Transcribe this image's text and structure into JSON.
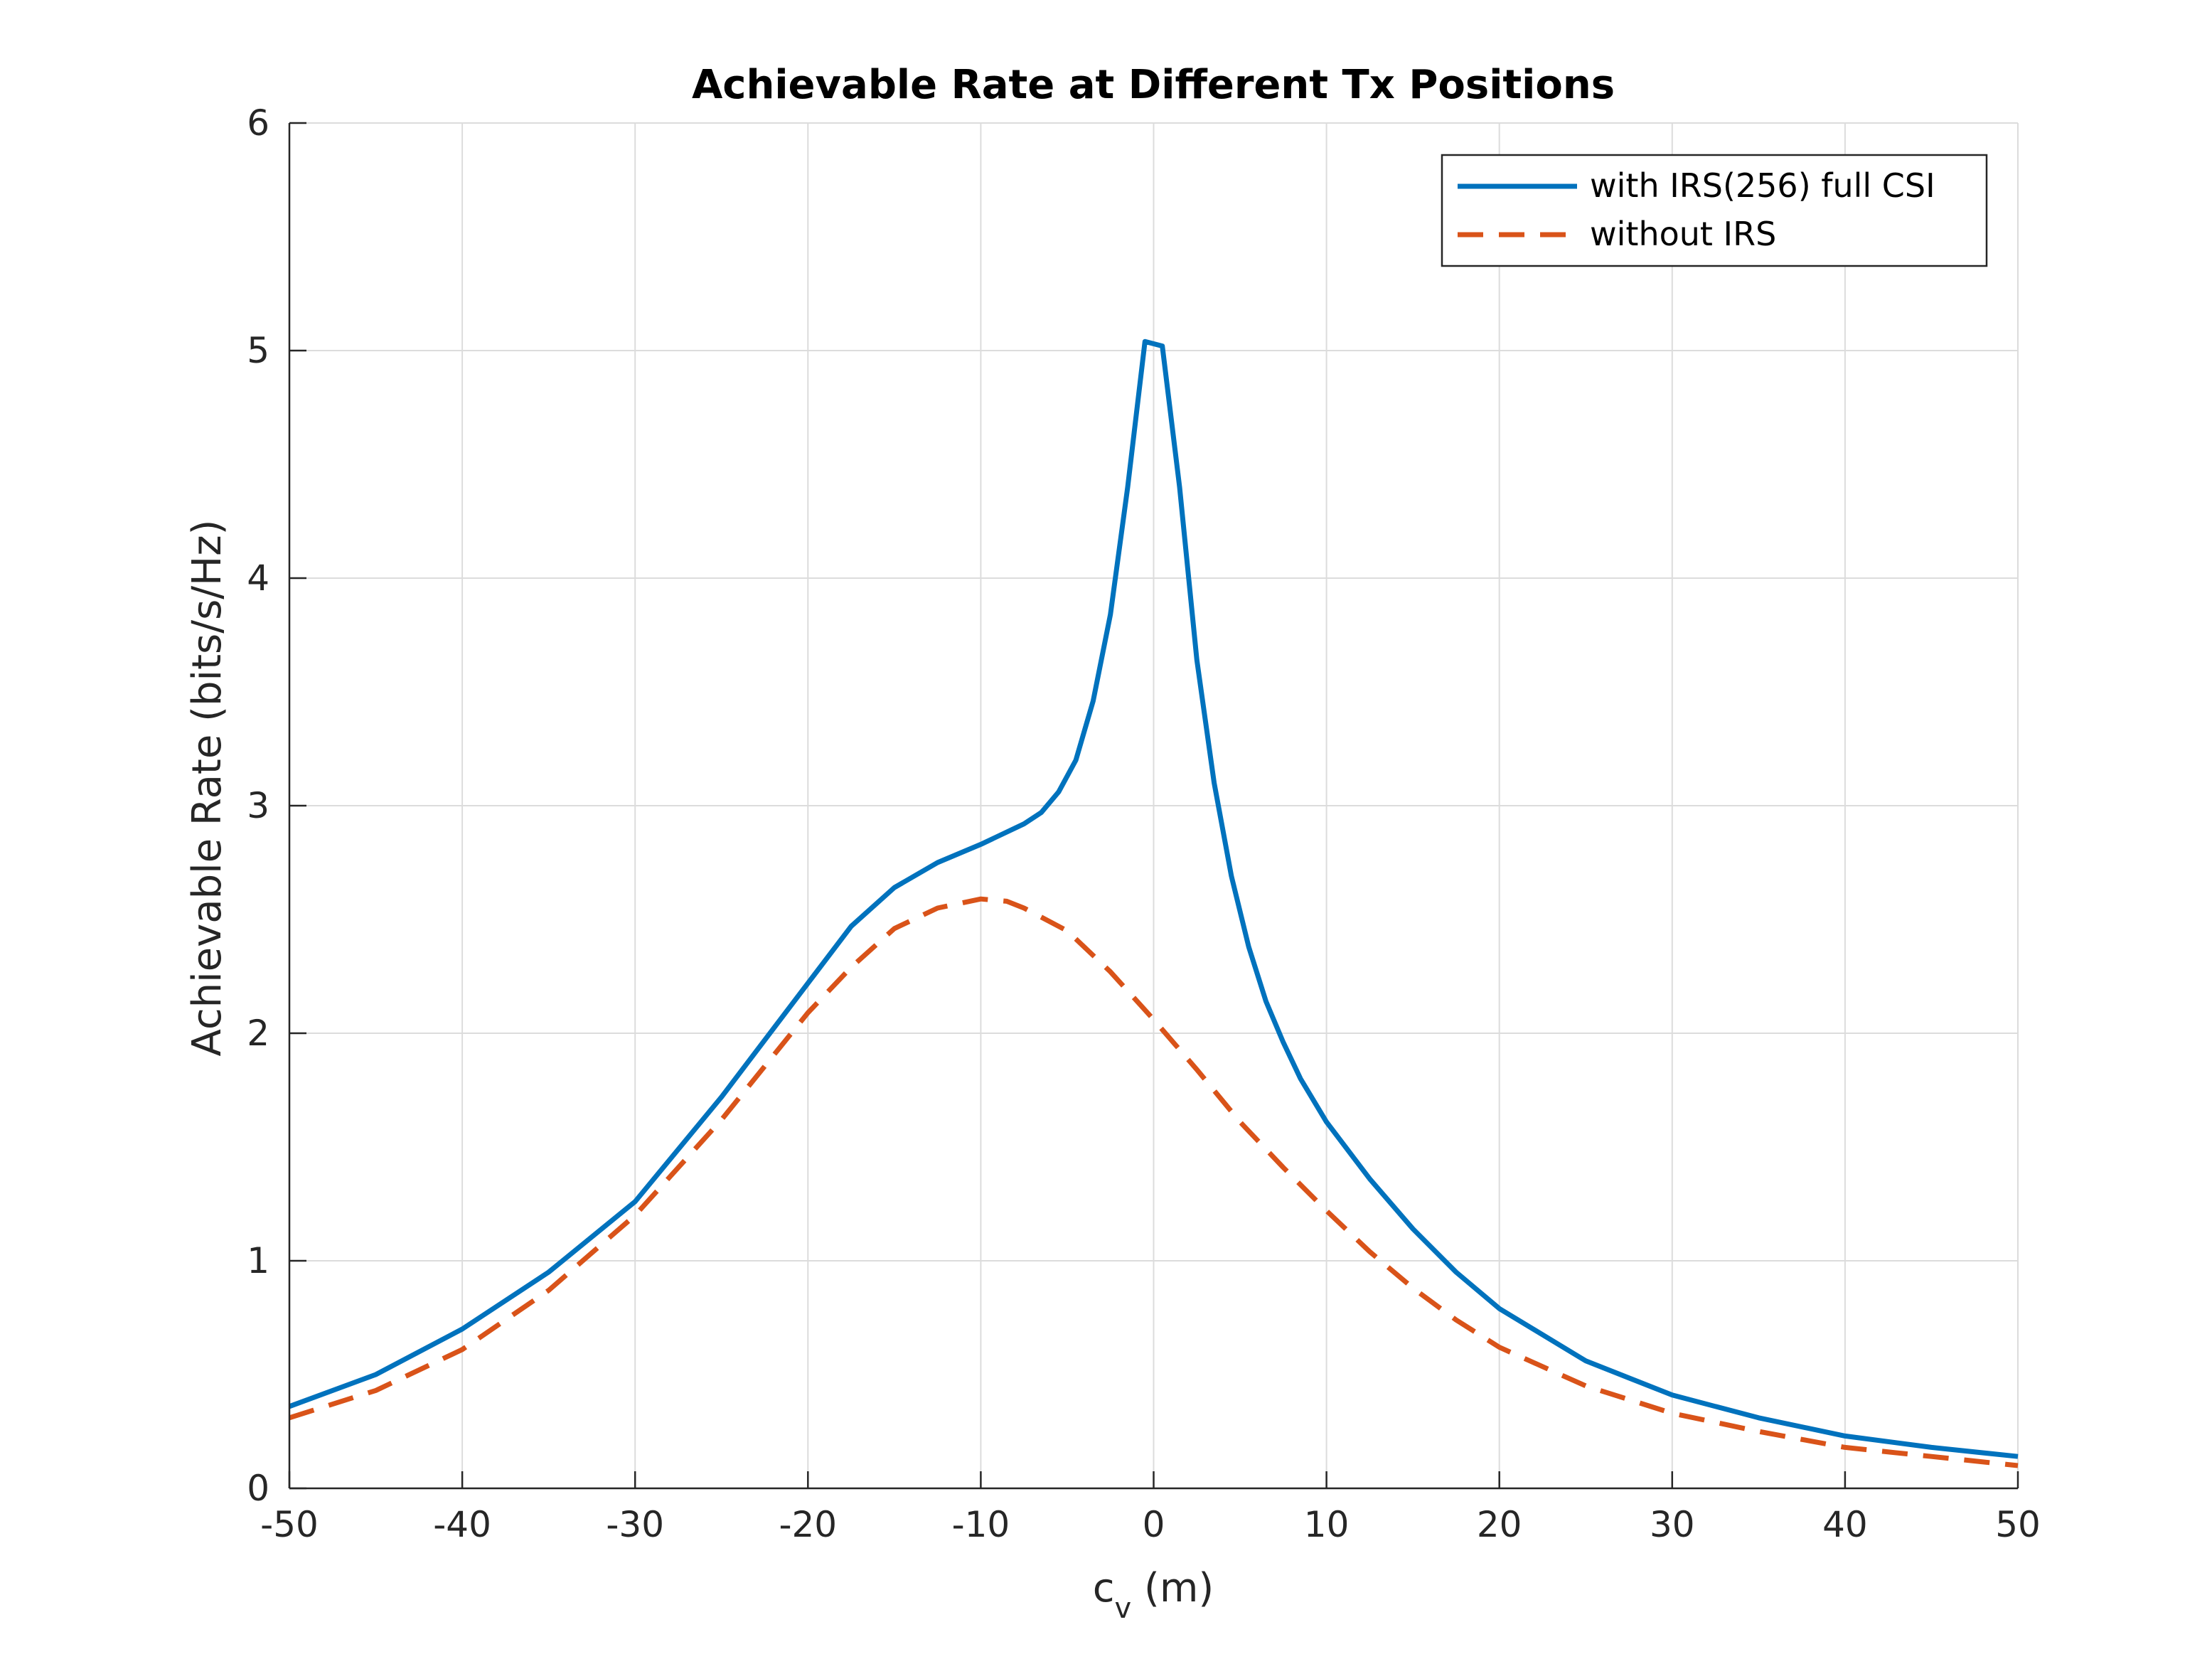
{
  "chart_data": {
    "type": "line",
    "title": "Achievable Rate at Different Tx Positions",
    "xlabel": "c",
    "xlabel_sub": "v",
    "xlabel_unit": " (m)",
    "ylabel": "Achievable Rate (bits/s/Hz)",
    "xlim": [
      -50,
      50
    ],
    "ylim": [
      0,
      6
    ],
    "xticks": [
      -50,
      -40,
      -30,
      -20,
      -10,
      0,
      10,
      20,
      30,
      40,
      50
    ],
    "yticks": [
      0,
      1,
      2,
      3,
      4,
      5,
      6
    ],
    "grid": true,
    "legend_position": "top-right",
    "series": [
      {
        "name": "with IRS(256) full CSI",
        "color": "#0072BD",
        "style": "solid",
        "x": [
          -50,
          -45,
          -40,
          -35,
          -30,
          -25,
          -20,
          -17.5,
          -15,
          -12.5,
          -10,
          -7.5,
          -6.5,
          -5.5,
          -4.5,
          -3.5,
          -2.5,
          -1.5,
          -0.5,
          0.5,
          1.5,
          2.5,
          3.5,
          4.5,
          5.5,
          6.5,
          7.5,
          8.5,
          10,
          12.5,
          15,
          17.5,
          20,
          25,
          30,
          35,
          40,
          45,
          50
        ],
        "y": [
          0.36,
          0.5,
          0.7,
          0.95,
          1.26,
          1.72,
          2.22,
          2.47,
          2.64,
          2.75,
          2.83,
          2.92,
          2.97,
          3.06,
          3.2,
          3.46,
          3.84,
          4.4,
          5.04,
          5.02,
          4.4,
          3.64,
          3.1,
          2.69,
          2.38,
          2.14,
          1.96,
          1.8,
          1.61,
          1.36,
          1.14,
          0.95,
          0.79,
          0.56,
          0.41,
          0.31,
          0.23,
          0.18,
          0.14
        ]
      },
      {
        "name": "without IRS",
        "color": "#D95319",
        "style": "dashed",
        "x": [
          -50,
          -45,
          -40,
          -35,
          -30,
          -25,
          -20,
          -17.5,
          -15,
          -12.5,
          -10,
          -8.5,
          -7.5,
          -5,
          -2.5,
          0,
          2.5,
          5,
          7.5,
          10,
          12.5,
          15,
          17.5,
          20,
          25,
          30,
          35,
          40,
          45,
          50
        ],
        "y": [
          0.31,
          0.43,
          0.61,
          0.87,
          1.2,
          1.62,
          2.09,
          2.29,
          2.46,
          2.55,
          2.59,
          2.58,
          2.55,
          2.45,
          2.27,
          2.06,
          1.84,
          1.61,
          1.41,
          1.22,
          1.04,
          0.88,
          0.74,
          0.62,
          0.45,
          0.33,
          0.25,
          0.18,
          0.14,
          0.1
        ]
      }
    ]
  }
}
